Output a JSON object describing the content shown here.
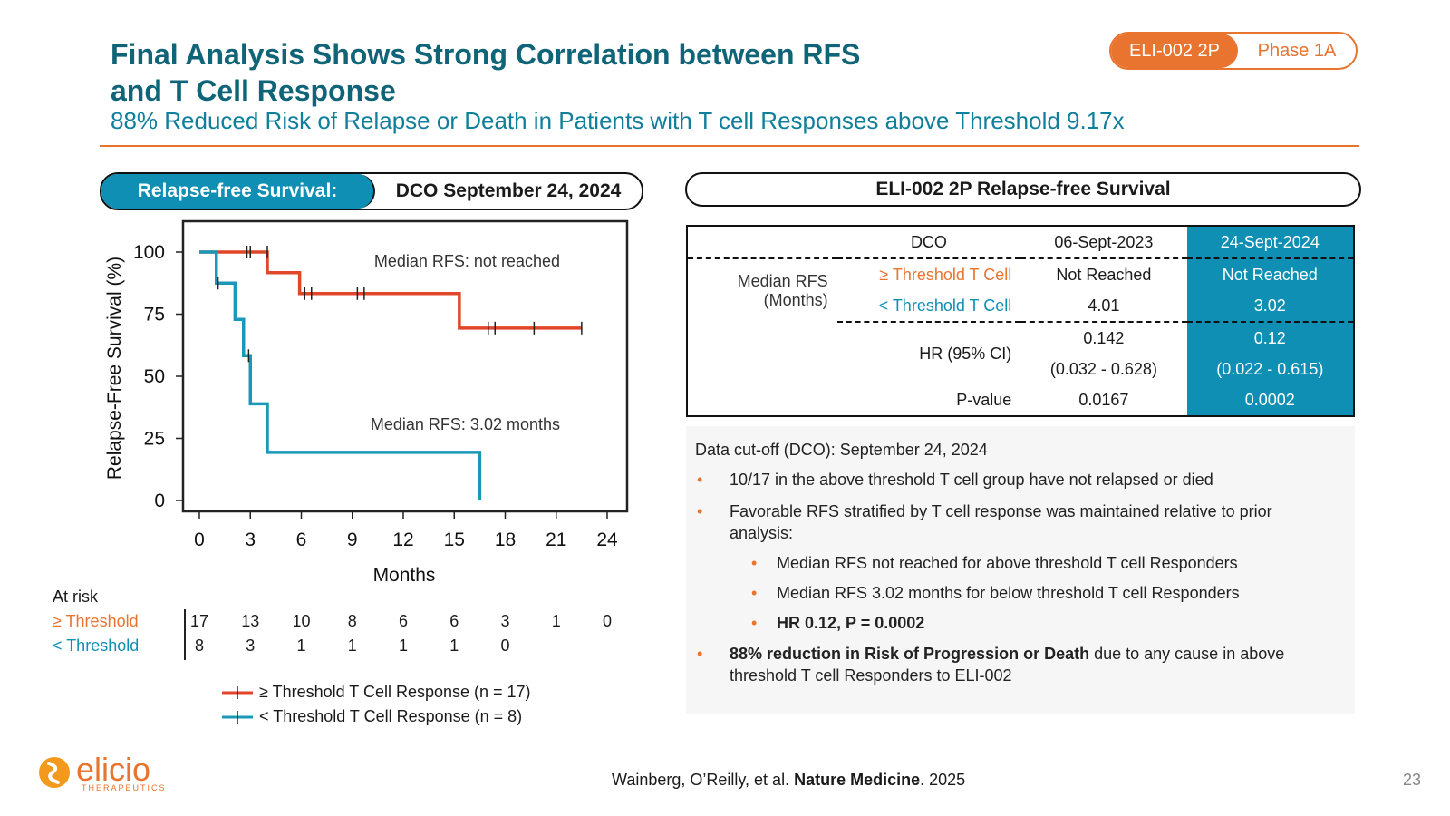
{
  "header": {
    "title_line1": "Final Analysis Shows Strong Correlation between RFS",
    "title_line2": "and T Cell Response",
    "subtitle": "88% Reduced Risk of Relapse or Death in Patients with T cell Responses above Threshold 9.17x",
    "badge_left": "ELI-002 2P",
    "badge_right": "Phase 1A"
  },
  "left_banner": {
    "label": "Relapse-free Survival:",
    "value": "DCO September 24, 2024"
  },
  "right_banner": {
    "label": "ELI-002 2P Relapse-free Survival"
  },
  "chart_data": {
    "type": "line",
    "step": true,
    "xlabel": "Months",
    "ylabel": "Relapse-Free Survival (%)",
    "xlim": [
      0,
      24
    ],
    "ylim": [
      0,
      100
    ],
    "xticks": [
      0,
      3,
      6,
      9,
      12,
      15,
      18,
      21,
      24
    ],
    "yticks": [
      0,
      25,
      50,
      75,
      100
    ],
    "annotations": [
      "Median RFS: not reached",
      "Median RFS: 3.02 months"
    ],
    "series": [
      {
        "name": "≥ Threshold T Cell Response (n = 17)",
        "color": "#e0462a",
        "x": [
          0,
          4.0,
          4.0,
          5.9,
          5.9,
          15.3,
          15.3,
          22.5
        ],
        "y": [
          100,
          100,
          91.7,
          91.7,
          83.3,
          83.3,
          69.4,
          69.4
        ],
        "censored": [
          [
            2.8,
            100
          ],
          [
            3.0,
            100
          ],
          [
            4.0,
            100
          ],
          [
            6.2,
            83.3
          ],
          [
            6.6,
            83.3
          ],
          [
            9.3,
            83.3
          ],
          [
            9.7,
            83.3
          ],
          [
            17.0,
            69.4
          ],
          [
            17.4,
            69.4
          ],
          [
            19.7,
            69.4
          ],
          [
            22.5,
            69.4
          ]
        ]
      },
      {
        "name": "< Threshold T Cell Response (n = 8)",
        "color": "#1a98b8",
        "x": [
          0,
          1.0,
          1.0,
          2.1,
          2.1,
          2.6,
          2.6,
          3.0,
          3.0,
          4.0,
          4.0,
          16.5,
          16.5
        ],
        "y": [
          100,
          100,
          87.5,
          87.5,
          72.9,
          72.9,
          58.3,
          58.3,
          38.9,
          38.9,
          19.4,
          19.4,
          0
        ],
        "censored": [
          [
            1.1,
            87.5
          ],
          [
            2.9,
            58.3
          ]
        ]
      }
    ],
    "at_risk": {
      "title": "At risk",
      "rows": [
        {
          "label": "≥ Threshold",
          "values": [
            "17",
            "13",
            "10",
            "8",
            "6",
            "6",
            "3",
            "1",
            "0"
          ]
        },
        {
          "label": "< Threshold",
          "values": [
            "8",
            "3",
            "1",
            "1",
            "1",
            "1",
            "0",
            "",
            ""
          ]
        }
      ]
    }
  },
  "table": {
    "header": {
      "dco": "DCO",
      "col1": "06-Sept-2023",
      "col2": "24-Sept-2024"
    },
    "median_label_1": "Median RFS",
    "median_label_2": "(Months)",
    "rows": [
      {
        "label": "≥ Threshold T Cell",
        "v1": "Not Reached",
        "v2": "Not Reached"
      },
      {
        "label": "< Threshold T Cell",
        "v1": "4.01",
        "v2": "3.02"
      }
    ],
    "hr_label": "HR (95% CI)",
    "hr_v1": "0.142",
    "hr_ci1": "(0.032 - 0.628)",
    "hr_v2": "0.12",
    "hr_ci2": "(0.022 - 0.615)",
    "p_label": "P-value",
    "p_v1": "0.0167",
    "p_v2": "0.0002"
  },
  "notes": {
    "dco": "Data cut-off (DCO): September 24, 2024",
    "b1": "10/17 in the above threshold T cell group have not relapsed or died",
    "b2_l1": "Favorable RFS stratified by T cell response was maintained relative to prior",
    "b2_l2": "analysis:",
    "s1": "Median RFS not reached for above threshold T cell Responders",
    "s2": "Median RFS 3.02 months for below threshold T cell Responders",
    "s3": "HR 0.12, P = 0.0002",
    "b3_bold": "88% reduction in Risk of Progression or Death",
    "b3_rest": " due to any cause in above",
    "b3_l2": "threshold T cell Responders to ELI-002"
  },
  "footer": {
    "citation_pre": "Wainberg, O’Reilly, et al. ",
    "citation_journal": "Nature Medicine",
    "citation_post": ". 2025",
    "page": "23",
    "logo_text": "elicio",
    "logo_sub": "THERAPEUTICS"
  }
}
